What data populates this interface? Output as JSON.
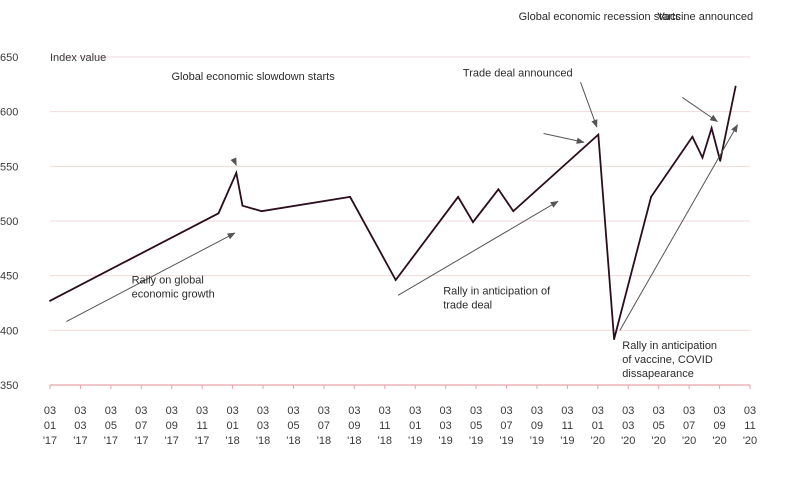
{
  "chart_data": {
    "type": "line",
    "ylabel": "Index value",
    "ylim": [
      350,
      650
    ],
    "yticks": [
      350,
      400,
      450,
      500,
      550,
      600,
      650
    ],
    "grid": true,
    "colors": {
      "line": "#2b0d1e",
      "grid": "#f2d9dc",
      "axis": "#e8a3ab",
      "arrow": "#b7bca2"
    },
    "xticks": [
      {
        "l1": "03",
        "l2": "01",
        "l3": "'17"
      },
      {
        "l1": "03",
        "l2": "03",
        "l3": "'17"
      },
      {
        "l1": "03",
        "l2": "05",
        "l3": "'17"
      },
      {
        "l1": "03",
        "l2": "07",
        "l3": "'17"
      },
      {
        "l1": "03",
        "l2": "09",
        "l3": "'17"
      },
      {
        "l1": "03",
        "l2": "11",
        "l3": "'17"
      },
      {
        "l1": "03",
        "l2": "01",
        "l3": "'18"
      },
      {
        "l1": "03",
        "l2": "03",
        "l3": "'18"
      },
      {
        "l1": "03",
        "l2": "05",
        "l3": "'18"
      },
      {
        "l1": "03",
        "l2": "07",
        "l3": "'18"
      },
      {
        "l1": "03",
        "l2": "09",
        "l3": "'18"
      },
      {
        "l1": "03",
        "l2": "11",
        "l3": "'18"
      },
      {
        "l1": "03",
        "l2": "01",
        "l3": "'19"
      },
      {
        "l1": "03",
        "l2": "03",
        "l3": "'19"
      },
      {
        "l1": "03",
        "l2": "05",
        "l3": "'19"
      },
      {
        "l1": "03",
        "l2": "07",
        "l3": "'19"
      },
      {
        "l1": "03",
        "l2": "09",
        "l3": "'19"
      },
      {
        "l1": "03",
        "l2": "11",
        "l3": "'19"
      },
      {
        "l1": "03",
        "l2": "01",
        "l3": "'20"
      },
      {
        "l1": "03",
        "l2": "03",
        "l3": "'20"
      },
      {
        "l1": "03",
        "l2": "05",
        "l3": "'20"
      },
      {
        "l1": "03",
        "l2": "07",
        "l3": "'20"
      },
      {
        "l1": "03",
        "l2": "09",
        "l3": "'20"
      },
      {
        "l1": "03",
        "l2": "11",
        "l3": "'20"
      }
    ],
    "series": [
      {
        "points": [
          {
            "x": "2017-01-03",
            "y": 427
          },
          {
            "x": "2017-12-20",
            "y": 507
          },
          {
            "x": "2018-01-26",
            "y": 544
          },
          {
            "x": "2018-02-08",
            "y": 514
          },
          {
            "x": "2018-03-20",
            "y": 509
          },
          {
            "x": "2018-09-20",
            "y": 522
          },
          {
            "x": "2018-12-24",
            "y": 446
          },
          {
            "x": "2019-05-03",
            "y": 522
          },
          {
            "x": "2019-06-03",
            "y": 499
          },
          {
            "x": "2019-07-26",
            "y": 529
          },
          {
            "x": "2019-08-26",
            "y": 509
          },
          {
            "x": "2020-02-19",
            "y": 579
          },
          {
            "x": "2020-03-23",
            "y": 392
          },
          {
            "x": "2020-06-08",
            "y": 522
          },
          {
            "x": "2020-09-02",
            "y": 577
          },
          {
            "x": "2020-09-23",
            "y": 558
          },
          {
            "x": "2020-10-12",
            "y": 585
          },
          {
            "x": "2020-10-30",
            "y": 555
          },
          {
            "x": "2020-12-01",
            "y": 623
          }
        ]
      }
    ],
    "annotations": [
      {
        "id": "ann-slowdown",
        "lines": [
          "Global economic slowdown starts"
        ],
        "tx": "2017-09-13",
        "ty": 629,
        "ax1": "2018-01-20",
        "ay1": 557,
        "ax2": "2018-01-26",
        "ay2": 551
      },
      {
        "id": "ann-recession",
        "lines": [
          "Global economic recession starts"
        ],
        "tx": "2019-09-06",
        "ty": 684,
        "ax1": "2020-01-13",
        "ay1": 627,
        "ax2": "2020-02-16",
        "ay2": 586
      },
      {
        "id": "ann-vaccine",
        "lines": [
          "Vaccine announced"
        ],
        "tx": "2020-06-21",
        "ty": 684,
        "ax1": "2020-08-12",
        "ay1": 613,
        "ax2": "2020-10-24",
        "ay2": 591
      },
      {
        "id": "ann-trade",
        "lines": [
          "Trade deal announced"
        ],
        "tx": "2019-05-13",
        "ty": 632,
        "ax1": "2019-10-28",
        "ay1": 580,
        "ax2": "2020-01-20",
        "ay2": 572
      },
      {
        "id": "ann-rally-global",
        "lines": [
          "Rally on global",
          "economic growth"
        ],
        "tx": "2017-06-22",
        "ty": 443,
        "ax1": "2017-02-06",
        "ay1": 408,
        "ax2": "2018-01-23",
        "ay2": 489
      },
      {
        "id": "ann-rally-trade",
        "lines": [
          "Rally in anticipation of",
          "trade deal"
        ],
        "tx": "2019-04-02",
        "ty": 433,
        "ax1": "2018-12-29",
        "ay1": 432,
        "ax2": "2019-11-27",
        "ay2": 518
      },
      {
        "id": "ann-rally-vaccine",
        "lines": [
          "Rally in anticipation",
          "of vaccine, COVID",
          "dissapearance"
        ],
        "tx": "2020-04-09",
        "ty": 383,
        "ax1": "2020-04-04",
        "ay1": 400,
        "ax2": "2020-12-05",
        "ay2": 588
      }
    ]
  }
}
